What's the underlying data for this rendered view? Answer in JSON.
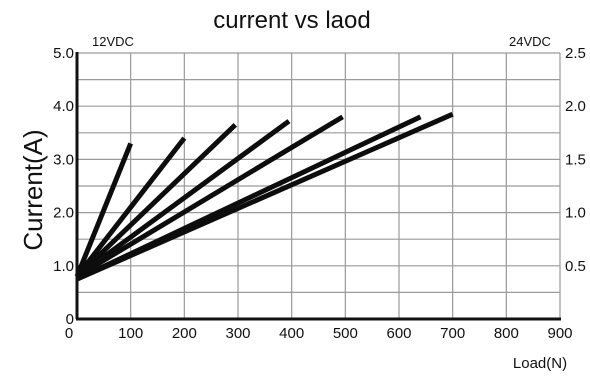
{
  "chart_data": {
    "type": "line",
    "title": "current vs laod",
    "ylabel": "Current(A)",
    "xlabel": "Load(N)",
    "left_axis_tag": "12VDC",
    "right_axis_tag": "24VDC",
    "xlim": [
      0,
      900
    ],
    "ylim": [
      0,
      5
    ],
    "y2lim": [
      0,
      2.5
    ],
    "grid": true,
    "x_ticks": [
      "0",
      "100",
      "200",
      "300",
      "400",
      "500",
      "600",
      "700",
      "800",
      "900"
    ],
    "y_ticks": [
      "0",
      "1.0",
      "2.0",
      "3.0",
      "4.0",
      "5.0"
    ],
    "y2_ticks": [
      "0.5",
      "1.0",
      "1.5",
      "2.0",
      "2.5"
    ],
    "series": [
      {
        "x": [
          0,
          100
        ],
        "y": [
          0.8,
          3.3
        ]
      },
      {
        "x": [
          0,
          200
        ],
        "y": [
          0.8,
          3.4
        ]
      },
      {
        "x": [
          0,
          295
        ],
        "y": [
          0.8,
          3.65
        ]
      },
      {
        "x": [
          0,
          395
        ],
        "y": [
          0.8,
          3.72
        ]
      },
      {
        "x": [
          0,
          495
        ],
        "y": [
          0.8,
          3.8
        ]
      },
      {
        "x": [
          0,
          640
        ],
        "y": [
          0.75,
          3.8
        ]
      },
      {
        "x": [
          0,
          700
        ],
        "y": [
          0.75,
          3.85
        ]
      }
    ]
  }
}
